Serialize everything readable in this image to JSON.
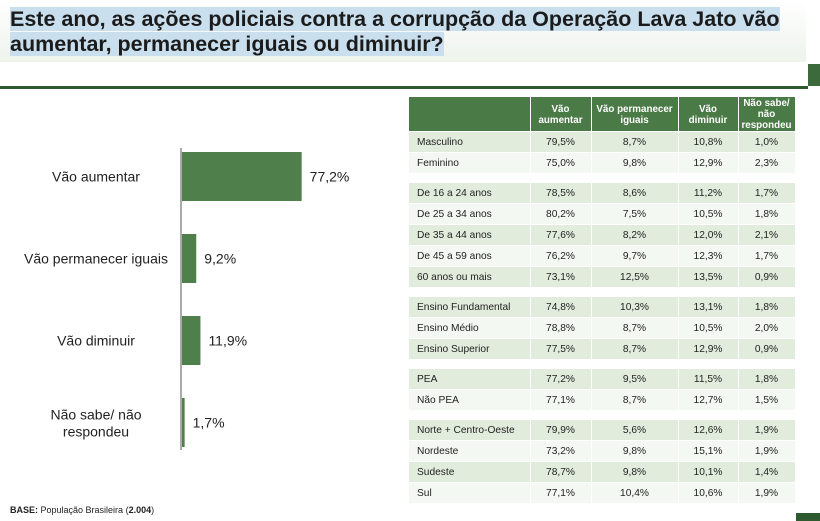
{
  "title": "Este ano, as ações policiais contra a corrupção da Operação Lava Jato vão aumentar, permanecer iguais ou diminuir?",
  "base_note": {
    "prefix": "BASE:",
    "text": " População Brasileira (",
    "n": "2.004",
    "suffix": ")"
  },
  "colors": {
    "bar": "#4f7f4a",
    "table_header": "#4a7a46",
    "row_odd": "#e1ecdd",
    "row_even": "#f4f8f2",
    "title_highlight": "#c9dfee"
  },
  "chart_data": {
    "type": "bar",
    "orientation": "horizontal",
    "categories": [
      "Vão aumentar",
      "Vão permanecer iguais",
      "Vão diminuir",
      "Não sabe/ não respondeu"
    ],
    "values": [
      77.2,
      9.2,
      11.9,
      1.7
    ],
    "value_labels": [
      "77,2%",
      "9,2%",
      "11,9%",
      "1,7%"
    ],
    "xlim": [
      0,
      100
    ],
    "title": "",
    "xlabel": "",
    "ylabel": "",
    "grid": false,
    "legend": "none"
  },
  "table": {
    "headers": [
      "",
      "Vão aumentar",
      "Vão permanecer iguais",
      "Vão diminuir",
      "Não sabe/ não respondeu"
    ],
    "groups": [
      {
        "rows": [
          {
            "label": "Masculino",
            "values": [
              "79,5%",
              "8,7%",
              "10,8%",
              "1,0%"
            ]
          },
          {
            "label": "Feminino",
            "values": [
              "75,0%",
              "9,8%",
              "12,9%",
              "2,3%"
            ]
          }
        ]
      },
      {
        "rows": [
          {
            "label": "De 16 a 24 anos",
            "values": [
              "78,5%",
              "8,6%",
              "11,2%",
              "1,7%"
            ]
          },
          {
            "label": "De 25 a 34 anos",
            "values": [
              "80,2%",
              "7,5%",
              "10,5%",
              "1,8%"
            ]
          },
          {
            "label": "De 35 a 44 anos",
            "values": [
              "77,6%",
              "8,2%",
              "12,0%",
              "2,1%"
            ]
          },
          {
            "label": "De 45 a 59 anos",
            "values": [
              "76,2%",
              "9,7%",
              "12,3%",
              "1,7%"
            ]
          },
          {
            "label": "60 anos ou mais",
            "values": [
              "73,1%",
              "12,5%",
              "13,5%",
              "0,9%"
            ]
          }
        ]
      },
      {
        "rows": [
          {
            "label": "Ensino Fundamental",
            "values": [
              "74,8%",
              "10,3%",
              "13,1%",
              "1,8%"
            ]
          },
          {
            "label": "Ensino Médio",
            "values": [
              "78,8%",
              "8,7%",
              "10,5%",
              "2,0%"
            ]
          },
          {
            "label": "Ensino Superior",
            "values": [
              "77,5%",
              "8,7%",
              "12,9%",
              "0,9%"
            ]
          }
        ]
      },
      {
        "rows": [
          {
            "label": "PEA",
            "values": [
              "77,2%",
              "9,5%",
              "11,5%",
              "1,8%"
            ]
          },
          {
            "label": "Não PEA",
            "values": [
              "77,1%",
              "8,7%",
              "12,7%",
              "1,5%"
            ]
          }
        ]
      },
      {
        "rows": [
          {
            "label": "Norte + Centro-Oeste",
            "values": [
              "79,9%",
              "5,6%",
              "12,6%",
              "1,9%"
            ]
          },
          {
            "label": "Nordeste",
            "values": [
              "73,2%",
              "9,8%",
              "15,1%",
              "1,9%"
            ]
          },
          {
            "label": "Sudeste",
            "values": [
              "78,7%",
              "9,8%",
              "10,1%",
              "1,4%"
            ]
          },
          {
            "label": "Sul",
            "values": [
              "77,1%",
              "10,4%",
              "10,6%",
              "1,9%"
            ]
          }
        ]
      }
    ]
  }
}
